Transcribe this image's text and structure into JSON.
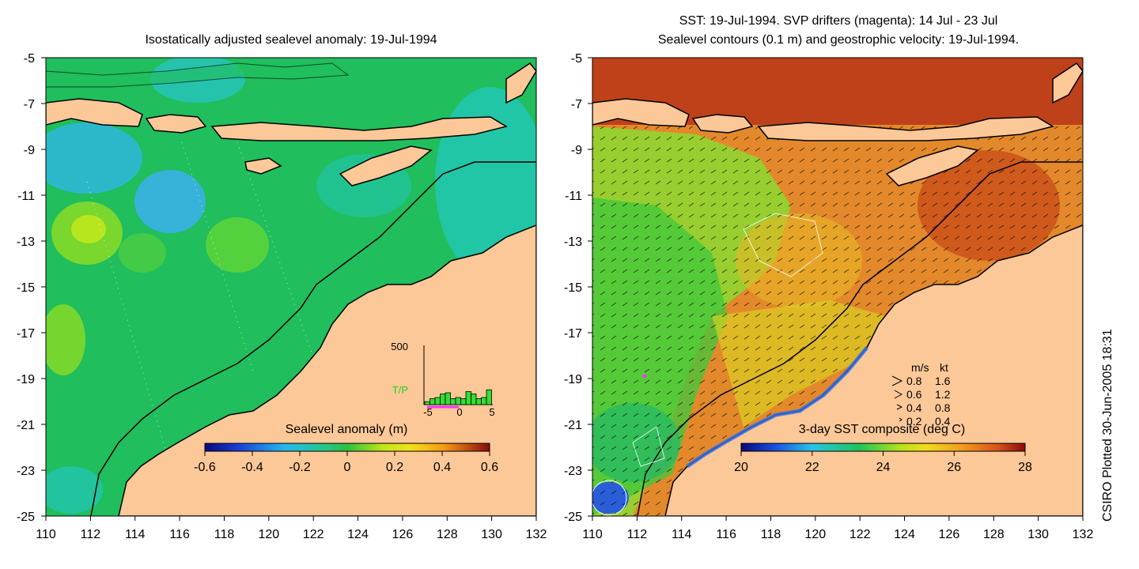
{
  "left_panel": {
    "title": "Isostatically adjusted sealevel anomaly: 19-Jul-1994",
    "colorbar": {
      "label": "Sealevel anomaly (m)",
      "ticks": [
        "-0.6",
        "-0.4",
        "-0.2",
        "0",
        "0.2",
        "0.4",
        "0.6"
      ]
    },
    "inset": {
      "ymax_label": "500",
      "series_label": "T/P",
      "x_ticks": [
        "-5",
        "0",
        "5"
      ],
      "bars": [
        0.05,
        0.1,
        0.12,
        0.18,
        0.2,
        0.1,
        0.12,
        0.1,
        0.22,
        0.18,
        0.1,
        0.12,
        0.25
      ],
      "colors": {
        "bars": "#33dd33",
        "label": "#22cc22",
        "marker": "#ff33ff"
      }
    }
  },
  "right_panel": {
    "title_line1": "SST: 19-Jul-1994. SVP drifters (magenta): 14 Jul - 23 Jul",
    "title_line2": "Sealevel contours (0.1 m) and geostrophic velocity: 19-Jul-1994.",
    "colorbar": {
      "label": "3-day SST composite (deg C)",
      "ticks": [
        "20",
        "22",
        "24",
        "26",
        "28"
      ]
    },
    "velocity_legend": {
      "header_ms": "m/s",
      "header_kt": "kt",
      "rows": [
        {
          "ms": "0.8",
          "kt": "1.6"
        },
        {
          "ms": "0.6",
          "kt": "1.2"
        },
        {
          "ms": "0.4",
          "kt": "0.8"
        },
        {
          "ms": "0.2",
          "kt": "0.4"
        }
      ]
    }
  },
  "axes": {
    "lat_labels": [
      "-5",
      "-7",
      "-9",
      "-11",
      "-13",
      "-15",
      "-17",
      "-19",
      "-21",
      "-23",
      "-25"
    ],
    "lon_labels": [
      "110",
      "112",
      "114",
      "116",
      "118",
      "120",
      "122",
      "124",
      "126",
      "128",
      "130",
      "132"
    ]
  },
  "side_text": "CSIRO Plotted 30-Jun-2005 18:31",
  "colors": {
    "land": "#fdc898",
    "ocean_anomaly_base": "#1fbf5a",
    "ocean_sst_base": "#e28a2a",
    "coastline": "#000000"
  }
}
